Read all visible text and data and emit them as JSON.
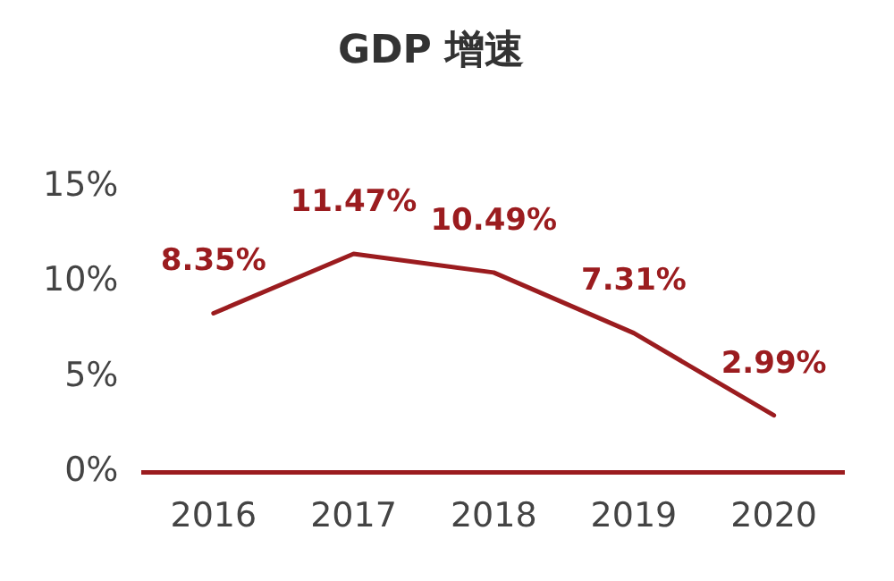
{
  "chart_data": {
    "type": "line",
    "title": "GDP 增速",
    "categories": [
      "2016",
      "2017",
      "2018",
      "2019",
      "2020"
    ],
    "series": [
      {
        "color": "#9b1c1f",
        "values": [
          8.35,
          11.47,
          10.49,
          7.31,
          2.99
        ],
        "value_labels": [
          "8.35%",
          "11.47%",
          "10.49%",
          "7.31%",
          "2.99%"
        ]
      }
    ],
    "ylim": [
      0,
      15
    ],
    "yticks": [
      {
        "value": 0,
        "label": "0%"
      },
      {
        "value": 5,
        "label": "5%"
      },
      {
        "value": 10,
        "label": "10%"
      },
      {
        "value": 15,
        "label": "15%"
      }
    ],
    "grid": false,
    "legend": false,
    "marker": "none",
    "line_style": "solid"
  }
}
